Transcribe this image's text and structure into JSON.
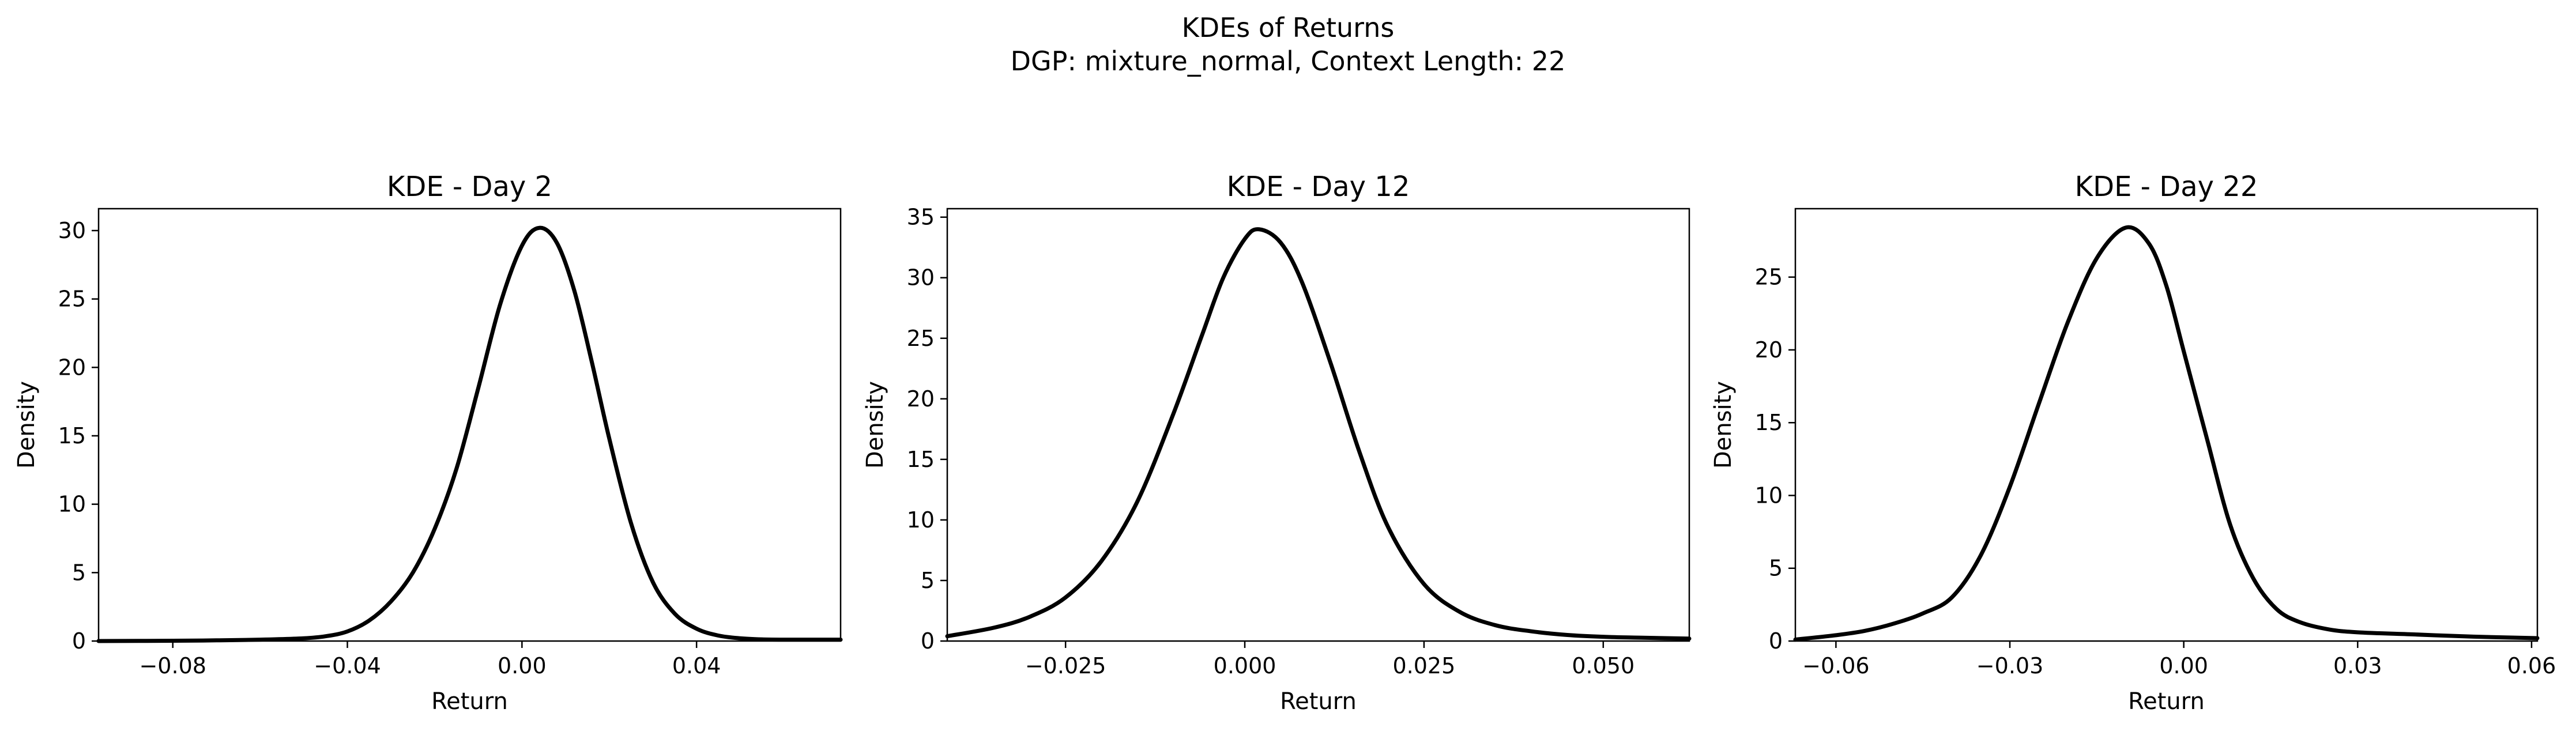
{
  "figure": {
    "title_line1": "KDEs of Returns",
    "title_line2": "DGP: mixture_normal, Context Length: 22"
  },
  "chart_data": [
    {
      "type": "line",
      "title": "KDE - Day 2",
      "xlabel": "Return",
      "ylabel": "Density",
      "xlim": [
        -0.097,
        0.073
      ],
      "ylim": [
        0,
        31.6
      ],
      "xticks": [
        -0.08,
        -0.04,
        0.0,
        0.04
      ],
      "xtick_labels": [
        "−0.08",
        "−0.04",
        "0.00",
        "0.04"
      ],
      "yticks": [
        0,
        5,
        10,
        15,
        20,
        25,
        30
      ],
      "ytick_labels": [
        "0",
        "5",
        "10",
        "15",
        "20",
        "25",
        "30"
      ],
      "grid": false,
      "series": [
        {
          "color": "#000000",
          "x": [
            -0.097,
            -0.08,
            -0.07,
            -0.06,
            -0.05,
            -0.045,
            -0.04,
            -0.035,
            -0.03,
            -0.025,
            -0.02,
            -0.015,
            -0.01,
            -0.005,
            0.0,
            0.004,
            0.008,
            0.012,
            0.016,
            0.02,
            0.025,
            0.03,
            0.035,
            0.04,
            0.045,
            0.05,
            0.055,
            0.06,
            0.065,
            0.073
          ],
          "y": [
            0.0,
            0.02,
            0.05,
            0.1,
            0.2,
            0.35,
            0.7,
            1.5,
            2.9,
            5.0,
            8.2,
            12.6,
            18.5,
            24.6,
            28.9,
            30.2,
            29.1,
            25.6,
            20.4,
            14.8,
            8.6,
            4.3,
            2.0,
            0.9,
            0.4,
            0.2,
            0.12,
            0.1,
            0.1,
            0.1
          ]
        }
      ]
    },
    {
      "type": "line",
      "title": "KDE - Day 12",
      "xlabel": "Return",
      "ylabel": "Density",
      "xlim": [
        -0.0415,
        0.062
      ],
      "ylim": [
        0,
        35.7
      ],
      "xticks": [
        -0.025,
        0.0,
        0.025,
        0.05
      ],
      "xtick_labels": [
        "−0.025",
        "0.000",
        "0.025",
        "0.050"
      ],
      "yticks": [
        0,
        5,
        10,
        15,
        20,
        25,
        30,
        35
      ],
      "ytick_labels": [
        "0",
        "5",
        "10",
        "15",
        "20",
        "25",
        "30",
        "35"
      ],
      "grid": false,
      "series": [
        {
          "color": "#000000",
          "x": [
            -0.0415,
            -0.035,
            -0.03,
            -0.025,
            -0.02,
            -0.015,
            -0.01,
            -0.006,
            -0.003,
            0.0,
            0.002,
            0.005,
            0.008,
            0.012,
            0.016,
            0.02,
            0.025,
            0.03,
            0.035,
            0.04,
            0.045,
            0.05,
            0.055,
            0.062
          ],
          "y": [
            0.4,
            1.1,
            2.0,
            3.6,
            6.6,
            11.5,
            18.7,
            25.2,
            30.0,
            33.2,
            34.0,
            32.9,
            29.6,
            22.9,
            15.6,
            9.4,
            4.7,
            2.4,
            1.3,
            0.8,
            0.5,
            0.35,
            0.28,
            0.2
          ]
        }
      ]
    },
    {
      "type": "line",
      "title": "KDE - Day 22",
      "xlabel": "Return",
      "ylabel": "Density",
      "xlim": [
        -0.067,
        0.061
      ],
      "ylim": [
        0,
        29.7
      ],
      "xticks": [
        -0.06,
        -0.03,
        0.0,
        0.03,
        0.06
      ],
      "xtick_labels": [
        "−0.06",
        "−0.03",
        "0.00",
        "0.03",
        "0.06"
      ],
      "yticks": [
        0,
        5,
        10,
        15,
        20,
        25
      ],
      "ytick_labels": [
        "0",
        "5",
        "10",
        "15",
        "20",
        "25"
      ],
      "grid": false,
      "series": [
        {
          "color": "#000000",
          "x": [
            -0.067,
            -0.06,
            -0.055,
            -0.05,
            -0.045,
            -0.04,
            -0.035,
            -0.03,
            -0.025,
            -0.02,
            -0.015,
            -0.01,
            -0.006,
            -0.003,
            0.0,
            0.004,
            0.008,
            0.012,
            0.016,
            0.02,
            0.025,
            0.03,
            0.04,
            0.05,
            0.061
          ],
          "y": [
            0.1,
            0.4,
            0.7,
            1.2,
            1.9,
            3.0,
            5.9,
            10.6,
            16.3,
            21.9,
            26.3,
            28.4,
            27.3,
            24.4,
            19.9,
            13.9,
            8.0,
            4.3,
            2.2,
            1.3,
            0.8,
            0.6,
            0.45,
            0.3,
            0.2
          ]
        }
      ]
    }
  ]
}
